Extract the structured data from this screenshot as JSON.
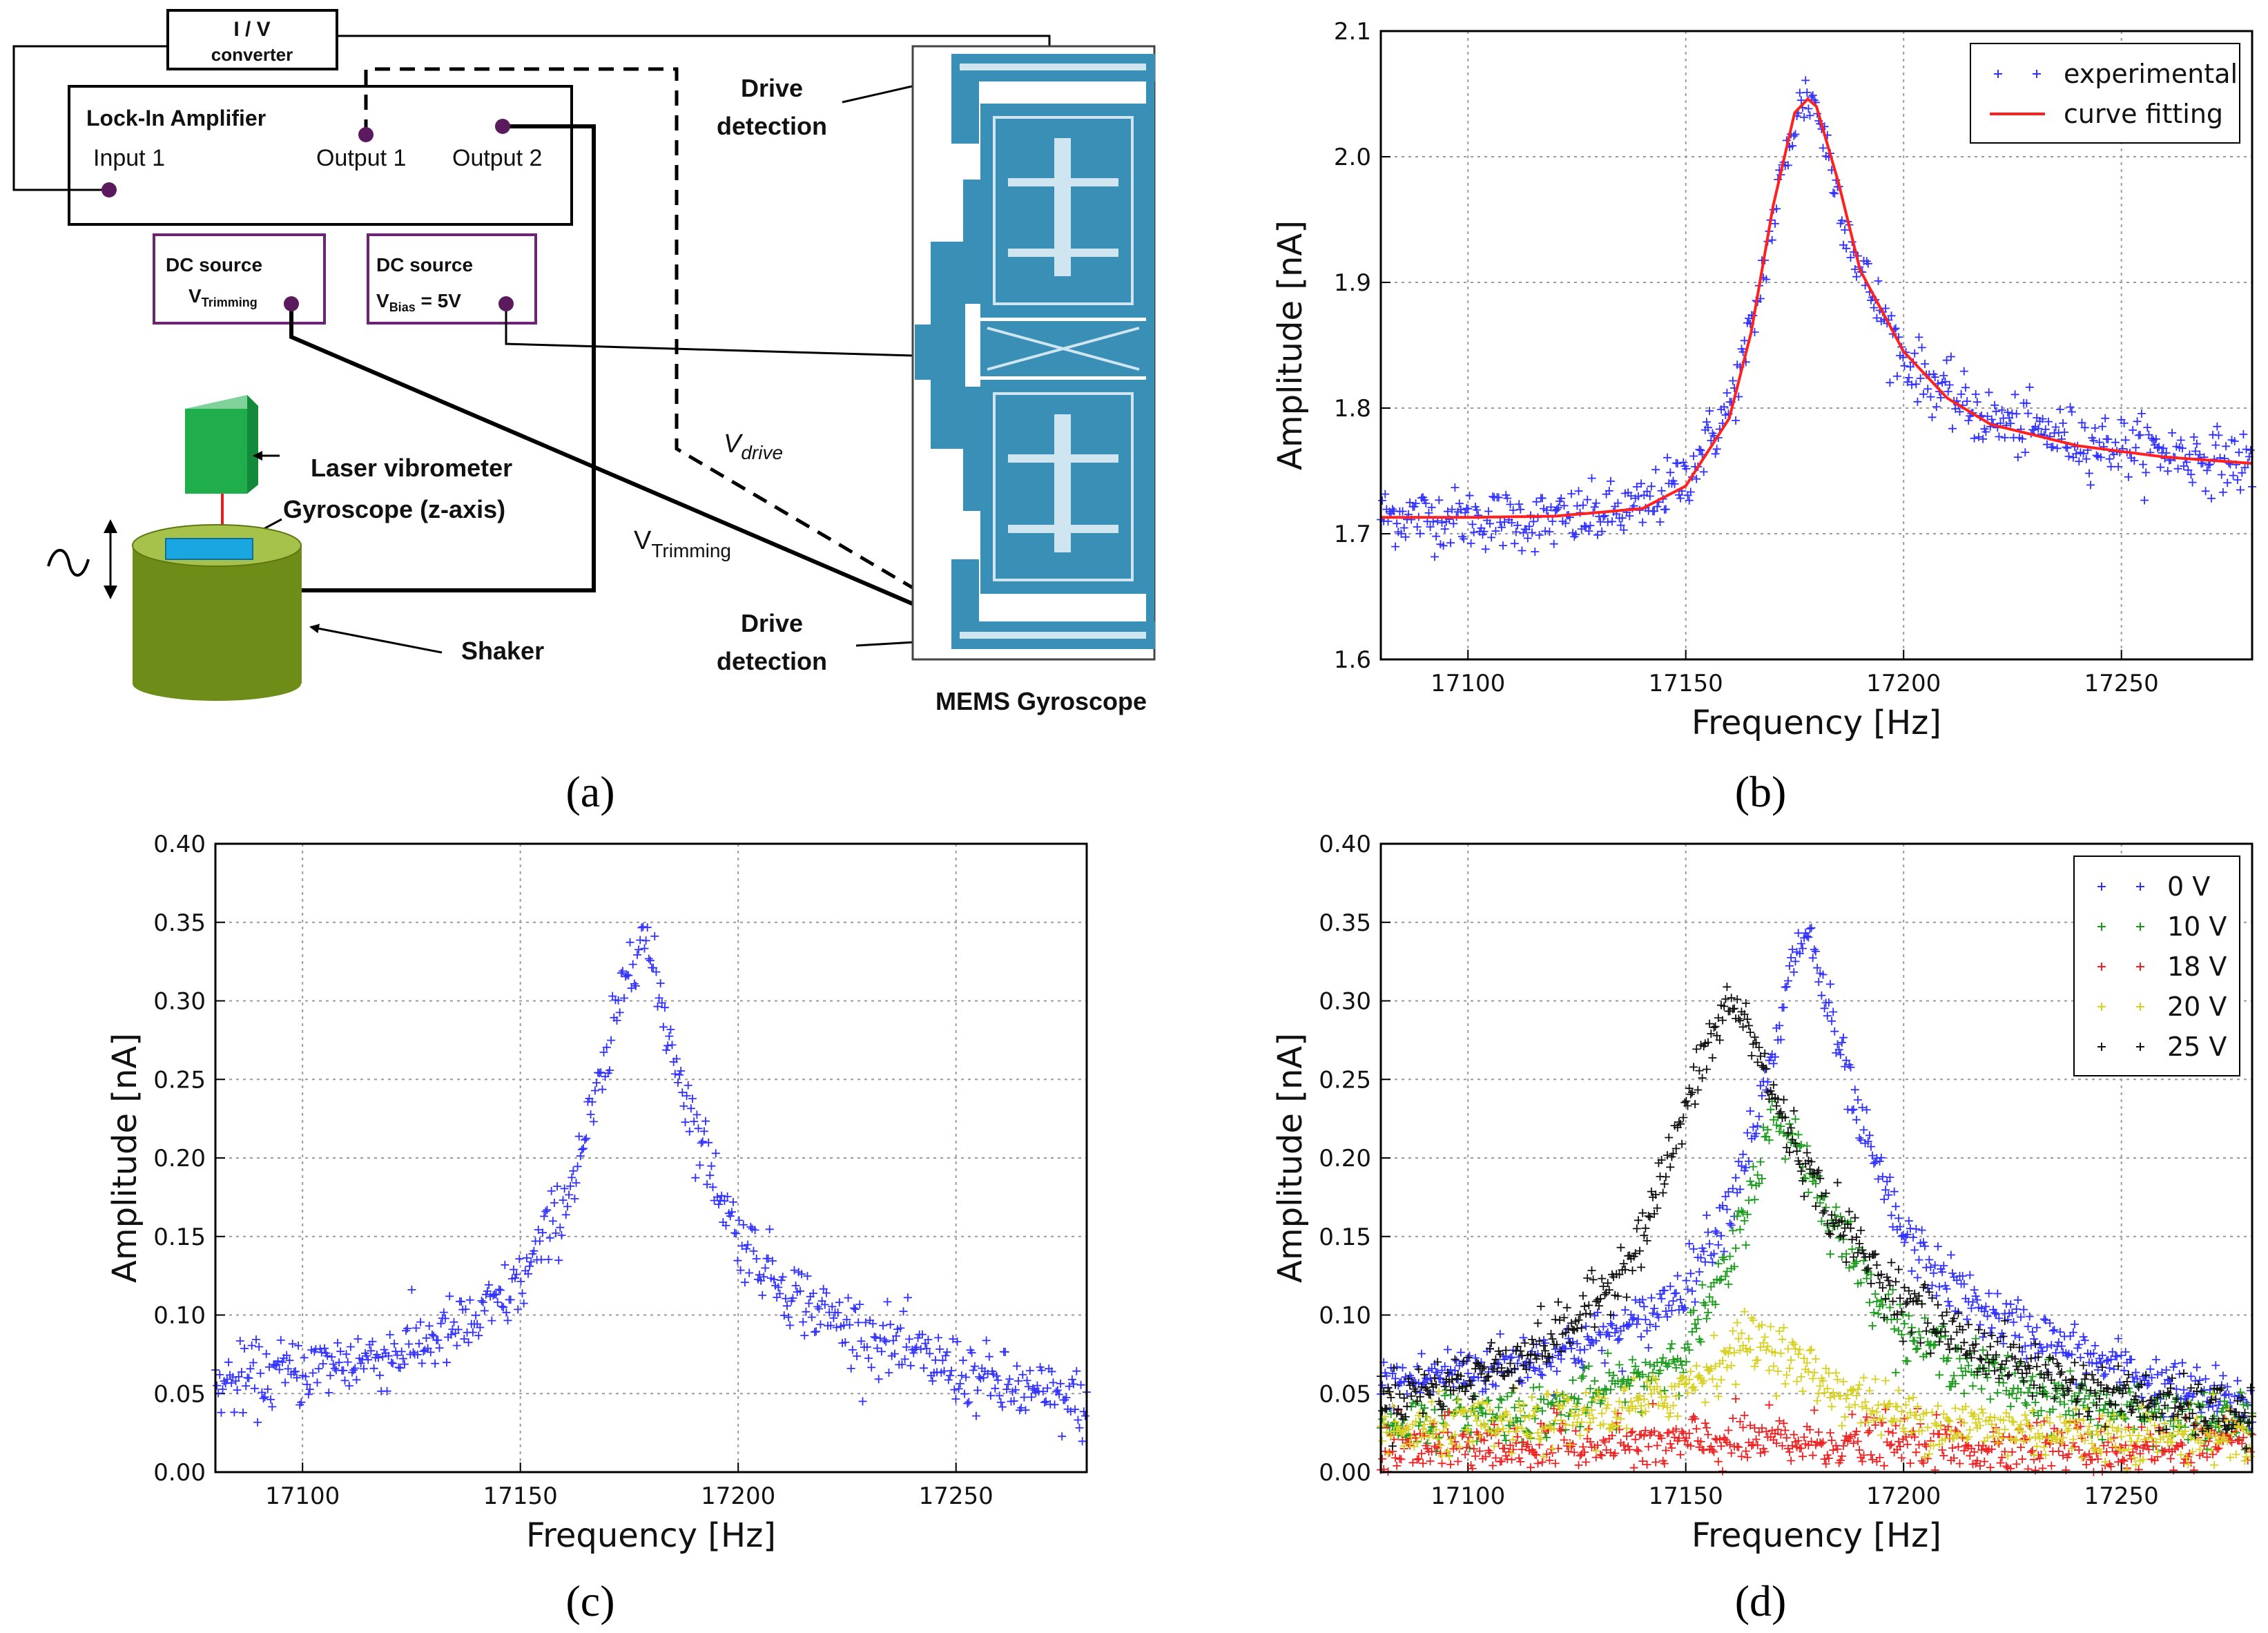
{
  "panel_labels": {
    "a": "(a)",
    "b": "(b)",
    "c": "(c)",
    "d": "(d)"
  },
  "diagram": {
    "iv_converter": {
      "line1": "I / V",
      "line2": "converter"
    },
    "lockin": {
      "title": "Lock-In Amplifier",
      "input1": "Input 1",
      "output1": "Output 1",
      "output2": "Output 2"
    },
    "dc_trim": {
      "title": "DC source",
      "label": "V",
      "sub": "Trimming"
    },
    "dc_bias": {
      "title": "DC source",
      "label": "V",
      "sub": "Bias",
      "value": " = 5V"
    },
    "laser": "Laser vibrometer",
    "gyro": "Gyroscope (z-axis)",
    "shaker": "Shaker",
    "drive_top": {
      "line1": "Drive",
      "line2": "detection"
    },
    "drive_bottom": {
      "line1": "Drive",
      "line2": "detection"
    },
    "vdrive": {
      "main": "V",
      "sub": "drive"
    },
    "vtrim": {
      "main": "V",
      "sub": "Trimming"
    },
    "mems_title": "MEMS Gyroscope",
    "colors": {
      "device": "#3a8fb7",
      "device_light": "#cfe6f0",
      "laser": "#1fae4b",
      "shaker": "#6e8c18",
      "shaker_top": "#a7c24a",
      "port": "#5b1a5e",
      "box_purple": "#6b2470"
    }
  },
  "axis_text": {
    "xlabel": "Frequency",
    "xunit": "[Hz]",
    "ylabel": "Amplitude",
    "yunit": "[nA]"
  },
  "chart_data": [
    {
      "panel": "b",
      "type": "scatter",
      "xlabel": "Frequency [Hz]",
      "ylabel": "Amplitude [nA]",
      "xlim": [
        17080,
        17280
      ],
      "ylim": [
        1.6,
        2.1
      ],
      "xticks": [
        17100,
        17150,
        17200,
        17250
      ],
      "yticks": [
        1.6,
        1.7,
        1.8,
        1.9,
        2.0,
        2.1
      ],
      "ytick_labels": [
        "1.6",
        "1.7",
        "1.8",
        "1.9",
        "2.0",
        "2.1"
      ],
      "grid": true,
      "legend": "top-right",
      "series": [
        {
          "name": "experimental",
          "kind": "scatter",
          "color": "#3030ff",
          "x": [
            17080,
            17100,
            17120,
            17140,
            17150,
            17160,
            17165,
            17170,
            17175,
            17178,
            17180,
            17185,
            17190,
            17200,
            17210,
            17220,
            17240,
            17260,
            17280
          ],
          "y": [
            1.715,
            1.712,
            1.71,
            1.72,
            1.745,
            1.8,
            1.86,
            1.95,
            2.03,
            2.05,
            2.04,
            1.97,
            1.91,
            1.84,
            1.81,
            1.79,
            1.775,
            1.765,
            1.755
          ]
        },
        {
          "name": "curve fitting",
          "kind": "line",
          "color": "#ff2020",
          "x": [
            17080,
            17100,
            17120,
            17140,
            17150,
            17160,
            17165,
            17170,
            17175,
            17178,
            17180,
            17185,
            17190,
            17200,
            17210,
            17220,
            17240,
            17260,
            17280
          ],
          "y": [
            1.713,
            1.713,
            1.714,
            1.72,
            1.738,
            1.792,
            1.86,
            1.96,
            2.035,
            2.046,
            2.04,
            1.98,
            1.91,
            1.845,
            1.808,
            1.787,
            1.77,
            1.761,
            1.756
          ]
        }
      ]
    },
    {
      "panel": "c",
      "type": "scatter",
      "xlabel": "Frequency [Hz]",
      "ylabel": "Amplitude [nA]",
      "xlim": [
        17080,
        17280
      ],
      "ylim": [
        0,
        0.4
      ],
      "xticks": [
        17100,
        17150,
        17200,
        17250
      ],
      "yticks": [
        0,
        0.05,
        0.1,
        0.15,
        0.2,
        0.25,
        0.3,
        0.35,
        0.4
      ],
      "ytick_labels": [
        "0.00",
        "0.05",
        "0.10",
        "0.15",
        "0.20",
        "0.25",
        "0.30",
        "0.35",
        "0.40"
      ],
      "grid": true,
      "series": [
        {
          "name": "0 V",
          "kind": "scatter",
          "color": "#3030ff",
          "x": [
            17080,
            17100,
            17120,
            17140,
            17150,
            17160,
            17170,
            17175,
            17178,
            17185,
            17190,
            17200,
            17210,
            17220,
            17240,
            17260,
            17280
          ],
          "y": [
            0.055,
            0.065,
            0.075,
            0.095,
            0.12,
            0.17,
            0.26,
            0.33,
            0.345,
            0.27,
            0.22,
            0.15,
            0.12,
            0.1,
            0.075,
            0.055,
            0.042
          ]
        }
      ]
    },
    {
      "panel": "d",
      "type": "scatter",
      "xlabel": "Frequency [Hz]",
      "ylabel": "Amplitude [nA]",
      "xlim": [
        17080,
        17280
      ],
      "ylim": [
        0,
        0.4
      ],
      "xticks": [
        17100,
        17150,
        17200,
        17250
      ],
      "yticks": [
        0,
        0.05,
        0.1,
        0.15,
        0.2,
        0.25,
        0.3,
        0.35,
        0.4
      ],
      "ytick_labels": [
        "0.00",
        "0.05",
        "0.10",
        "0.15",
        "0.20",
        "0.25",
        "0.30",
        "0.35",
        "0.40"
      ],
      "grid": true,
      "legend": "top-right",
      "series": [
        {
          "name": "0 V",
          "kind": "scatter",
          "color": "#3030ff",
          "x": [
            17080,
            17100,
            17120,
            17140,
            17150,
            17160,
            17170,
            17175,
            17178,
            17185,
            17190,
            17200,
            17210,
            17220,
            17240,
            17260,
            17280
          ],
          "y": [
            0.055,
            0.065,
            0.075,
            0.095,
            0.12,
            0.17,
            0.26,
            0.33,
            0.345,
            0.27,
            0.22,
            0.15,
            0.12,
            0.1,
            0.075,
            0.055,
            0.042
          ]
        },
        {
          "name": "10 V",
          "kind": "scatter",
          "color": "#1a9a1a",
          "x": [
            17080,
            17100,
            17120,
            17140,
            17150,
            17160,
            17165,
            17170,
            17175,
            17180,
            17190,
            17200,
            17220,
            17240,
            17260,
            17280
          ],
          "y": [
            0.03,
            0.035,
            0.04,
            0.06,
            0.08,
            0.13,
            0.18,
            0.225,
            0.215,
            0.18,
            0.13,
            0.09,
            0.06,
            0.045,
            0.035,
            0.03
          ]
        },
        {
          "name": "18 V",
          "kind": "scatter",
          "color": "#ee2020",
          "x": [
            17080,
            17100,
            17120,
            17140,
            17160,
            17180,
            17200,
            17220,
            17240,
            17260,
            17280
          ],
          "y": [
            0.015,
            0.015,
            0.016,
            0.017,
            0.02,
            0.019,
            0.017,
            0.016,
            0.015,
            0.015,
            0.015
          ]
        },
        {
          "name": "20 V",
          "kind": "scatter",
          "color": "#d8d020",
          "x": [
            17080,
            17100,
            17120,
            17140,
            17150,
            17160,
            17165,
            17170,
            17180,
            17190,
            17200,
            17220,
            17240,
            17260,
            17280
          ],
          "y": [
            0.025,
            0.027,
            0.032,
            0.042,
            0.055,
            0.075,
            0.085,
            0.08,
            0.06,
            0.045,
            0.035,
            0.028,
            0.025,
            0.024,
            0.024
          ]
        },
        {
          "name": "25 V",
          "kind": "scatter",
          "color": "#111111",
          "x": [
            17080,
            17100,
            17120,
            17130,
            17140,
            17150,
            17155,
            17160,
            17165,
            17170,
            17180,
            17190,
            17200,
            17210,
            17220,
            17240,
            17260,
            17280
          ],
          "y": [
            0.045,
            0.06,
            0.085,
            0.11,
            0.15,
            0.23,
            0.27,
            0.3,
            0.28,
            0.24,
            0.18,
            0.14,
            0.11,
            0.09,
            0.075,
            0.055,
            0.042,
            0.035
          ]
        }
      ]
    }
  ]
}
